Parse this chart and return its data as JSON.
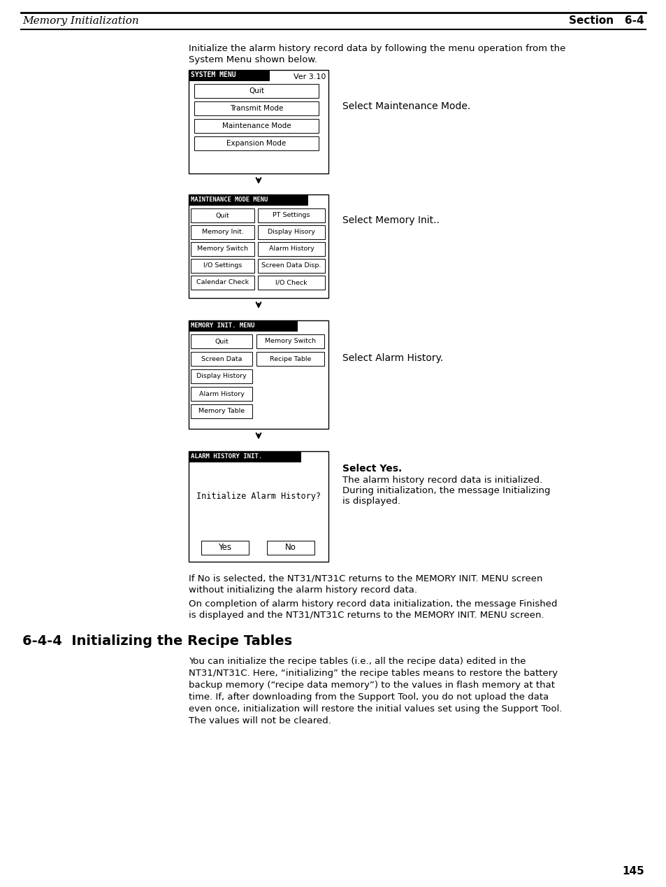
{
  "page_title_left": "Memory Initialization",
  "page_title_right": "Section   6-4",
  "page_number": "145",
  "intro_text": "Initialize the alarm history record data by following the menu operation from the\nSystem Menu shown below.",
  "menu1_title": "SYSTEM MENU",
  "menu1_ver": "Ver 3.10",
  "menu1_buttons_left": [
    "Quit",
    "Transmit Mode",
    "Maintenance Mode",
    "Expansion Mode"
  ],
  "menu2_title": "MAINTENANCE MODE MENU",
  "menu2_buttons_left": [
    "Quit",
    "Memory Init.",
    "Memory Switch",
    "I/O Settings",
    "Calendar Check"
  ],
  "menu2_buttons_right": [
    "PT Settings",
    "Display Hisory",
    "Alarm History",
    "Screen Data Disp.",
    "I/O Check"
  ],
  "menu3_title": "MEMORY INIT. MENU",
  "menu3_buttons_left": [
    "Quit",
    "Screen Data",
    "Display History",
    "Alarm History",
    "Memory Table"
  ],
  "menu3_buttons_right": [
    "Memory Switch",
    "Recipe Table"
  ],
  "menu4_title": "ALARM HISTORY INIT.",
  "menu4_center_text": "Initialize Alarm History?",
  "menu4_buttons": [
    "Yes",
    "No"
  ],
  "ann1": "Select Maintenance Mode.",
  "ann2": "Select Memory Init..",
  "ann3": "Select Alarm History.",
  "ann4_line1": "Select Yes.",
  "ann4_line2": "The alarm history record data is initialized.",
  "ann4_line3": "During initialization, the message Initializing",
  "ann4_line4": "is displayed.",
  "footer_text1_line1": "If No is selected, the NT31/NT31C returns to the MEMORY INIT. MENU screen",
  "footer_text1_line2": "without initializing the alarm history record data.",
  "footer_text2_line1": "On completion of alarm history record data initialization, the message Finished",
  "footer_text2_line2": "is displayed and the NT31/NT31C returns to the MEMORY INIT. MENU screen.",
  "section_heading": "6-4-4  Initializing the Recipe Tables",
  "section_body_lines": [
    "You can initialize the recipe tables (i.e., all the recipe data) edited in the",
    "NT31/NT31C. Here, “initializing” the recipe tables means to restore the battery",
    "backup memory (“recipe data memory”) to the values in flash memory at that",
    "time. If, after downloading from the Support Tool, you do not upload the data",
    "even once, initialization will restore the initial values set using the Support Tool.",
    "The values will not be cleared."
  ],
  "bg_color": "#ffffff"
}
